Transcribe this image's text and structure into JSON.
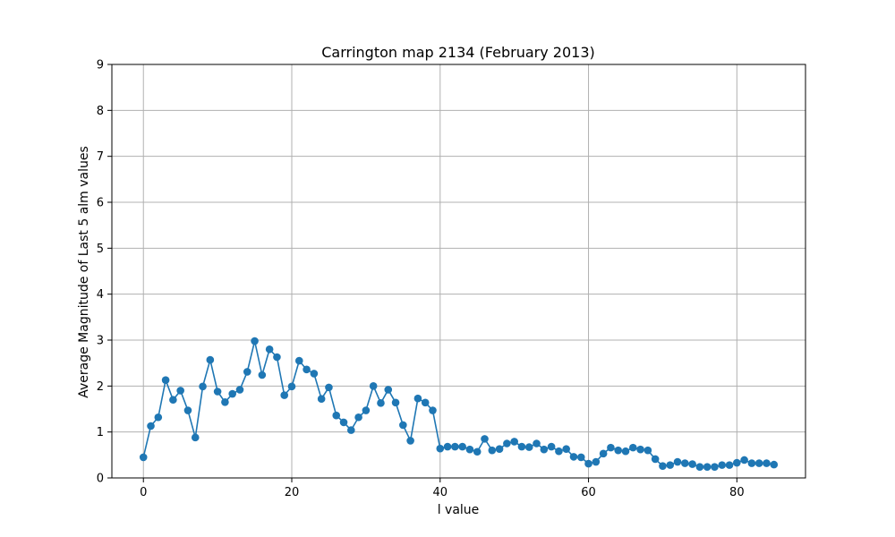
{
  "chart_data": {
    "type": "line",
    "title": "Carrington map 2134 (February 2013)",
    "xlabel": "l value",
    "ylabel": "Average Magnitude of Last 5 alm values",
    "xlim": [
      -4.25,
      89.25
    ],
    "ylim": [
      0,
      9
    ],
    "xticks": [
      0,
      20,
      40,
      60,
      80
    ],
    "yticks": [
      0,
      1,
      2,
      3,
      4,
      5,
      6,
      7,
      8,
      9
    ],
    "grid": true,
    "marker": "circle",
    "colors": {
      "series": "#1f77b4",
      "grid": "#b0b0b0",
      "axes": "#000000"
    },
    "series": [
      {
        "x": [
          0,
          1,
          2,
          3,
          4,
          5,
          6,
          7,
          8,
          9,
          10,
          11,
          12,
          13,
          14,
          15,
          16,
          17,
          18,
          19,
          20,
          21,
          22,
          23,
          24,
          25,
          26,
          27,
          28,
          29,
          30,
          31,
          32,
          33,
          34,
          35,
          36,
          37,
          38,
          39,
          40,
          41,
          42,
          43,
          44,
          45,
          46,
          47,
          48,
          49,
          50,
          51,
          52,
          53,
          54,
          55,
          56,
          57,
          58,
          59,
          60,
          61,
          62,
          63,
          64,
          65,
          66,
          67,
          68,
          69,
          70,
          71,
          72,
          73,
          74,
          75,
          76,
          77,
          78,
          79,
          80,
          81,
          82,
          83,
          84,
          85
        ],
        "y": [
          0.45,
          1.13,
          1.32,
          2.13,
          1.7,
          1.9,
          1.47,
          0.88,
          1.99,
          2.57,
          1.88,
          1.65,
          1.83,
          1.92,
          2.31,
          2.98,
          2.24,
          2.8,
          2.63,
          1.8,
          1.99,
          2.55,
          2.36,
          2.27,
          1.72,
          1.97,
          1.36,
          1.21,
          1.04,
          1.32,
          1.47,
          2.0,
          1.63,
          1.92,
          1.64,
          1.15,
          0.81,
          1.73,
          1.64,
          1.47,
          0.64,
          0.68,
          0.68,
          0.68,
          0.62,
          0.57,
          0.85,
          0.6,
          0.63,
          0.75,
          0.79,
          0.68,
          0.67,
          0.75,
          0.62,
          0.68,
          0.58,
          0.63,
          0.46,
          0.45,
          0.31,
          0.35,
          0.53,
          0.66,
          0.6,
          0.58,
          0.66,
          0.62,
          0.6,
          0.41,
          0.26,
          0.28,
          0.35,
          0.32,
          0.3,
          0.24,
          0.24,
          0.24,
          0.28,
          0.28,
          0.33,
          0.39,
          0.32,
          0.32,
          0.32,
          0.29
        ]
      }
    ]
  }
}
